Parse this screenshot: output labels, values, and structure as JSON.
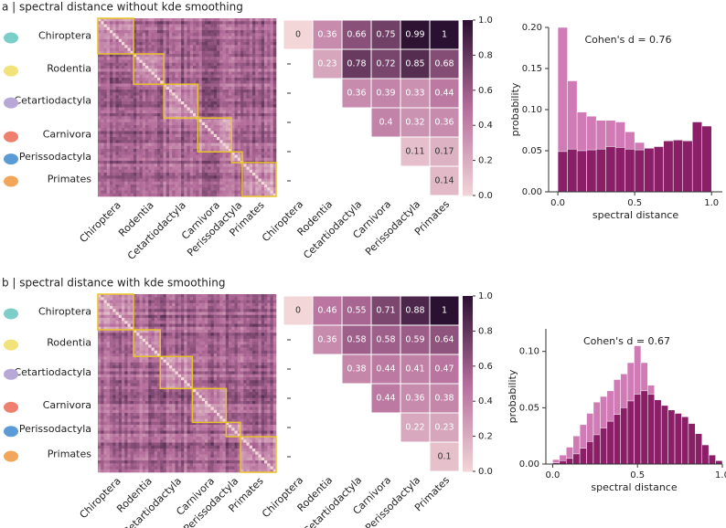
{
  "chart_data": [
    {
      "type": "heatmap",
      "title": "a | spectral distance without kde smoothing",
      "categories": [
        "Chiroptera",
        "Rodentia",
        "Cetartiodactyla",
        "Carnivora",
        "Perissodactyla",
        "Primates"
      ],
      "values": [
        [
          0,
          0.36,
          0.66,
          0.75,
          0.99,
          1
        ],
        [
          null,
          0.23,
          0.78,
          0.72,
          0.85,
          0.68
        ],
        [
          null,
          null,
          0.36,
          0.39,
          0.33,
          0.44
        ],
        [
          null,
          null,
          null,
          0.4,
          0.32,
          0.36
        ],
        [
          null,
          null,
          null,
          null,
          0.11,
          0.17
        ],
        [
          null,
          null,
          null,
          null,
          null,
          0.14
        ]
      ],
      "colors": [
        "#f2d6d8",
        "#b56e9c",
        "#2b1131"
      ],
      "clim": [
        0,
        1
      ],
      "cticks": [
        {
          "value": 0,
          "label": "0.0"
        },
        0.2,
        0.4,
        0.6,
        0.8,
        {
          "value": 1,
          "label": "1.0"
        }
      ]
    },
    {
      "type": "histogram",
      "annotation": "Cohen's d = 0.76",
      "xlabel": "spectral distance",
      "ylabel": "probability",
      "bins": [
        0,
        0.0625,
        0.125,
        0.1875,
        0.25,
        0.3125,
        0.375,
        0.4375,
        0.5,
        0.5625,
        0.625,
        0.6875,
        0.75,
        0.8125,
        0.875,
        0.9375,
        1
      ],
      "series": [
        {
          "color": "#d07bb5",
          "values": [
            0.2,
            0.135,
            0.097,
            0.092,
            0.087,
            0.087,
            0.085,
            0.073,
            0.06,
            0.05,
            0.045,
            0.04,
            0.035,
            0.03,
            0.02,
            0.01
          ]
        },
        {
          "color": "#8a1f68",
          "values": [
            0.049,
            0.052,
            0.05,
            0.051,
            0.052,
            0.055,
            0.054,
            0.052,
            0.051,
            0.053,
            0.055,
            0.062,
            0.063,
            0.062,
            0.085,
            0.08
          ]
        }
      ],
      "xlim": [
        -0.06,
        1.07
      ],
      "ylim": [
        0,
        0.2
      ],
      "xticks": [
        {
          "value": 0,
          "label": "0.0"
        },
        0.5,
        {
          "value": 1,
          "label": "1.0"
        }
      ],
      "yticks": [
        {
          "value": 0,
          "label": "0.00"
        },
        {
          "value": 0.05,
          "label": "0.05"
        },
        {
          "value": 0.1,
          "label": "0.10"
        },
        {
          "value": 0.15,
          "label": "0.15"
        },
        {
          "value": 0.2,
          "label": "0.20"
        }
      ]
    },
    {
      "type": "heatmap",
      "title": "b | spectral distance with kde smoothing",
      "categories": [
        "Chiroptera",
        "Rodentia",
        "Cetartiodactyla",
        "Carnivora",
        "Perissodactyla",
        "Primates"
      ],
      "values": [
        [
          0,
          0.46,
          0.55,
          0.71,
          0.88,
          1
        ],
        [
          null,
          0.36,
          0.58,
          0.58,
          0.59,
          0.64
        ],
        [
          null,
          null,
          0.38,
          0.44,
          0.41,
          0.47
        ],
        [
          null,
          null,
          null,
          0.44,
          0.36,
          0.38
        ],
        [
          null,
          null,
          null,
          null,
          0.22,
          0.23
        ],
        [
          null,
          null,
          null,
          null,
          null,
          0.1
        ]
      ],
      "colors": [
        "#f2d6d8",
        "#b56e9c",
        "#2b1131"
      ],
      "clim": [
        0,
        1
      ],
      "cticks": [
        {
          "value": 0,
          "label": "0.0"
        },
        0.2,
        0.4,
        0.6,
        0.8,
        {
          "value": 1,
          "label": "1.0"
        }
      ]
    },
    {
      "type": "histogram",
      "annotation": "Cohen's d = 0.67",
      "xlabel": "spectral distance",
      "ylabel": "probability",
      "bins": [
        0,
        0.04,
        0.08,
        0.12,
        0.16,
        0.2,
        0.24,
        0.28,
        0.32,
        0.36,
        0.4,
        0.44,
        0.48,
        0.52,
        0.56,
        0.6,
        0.64,
        0.68,
        0.72,
        0.76,
        0.8,
        0.84,
        0.88,
        0.92,
        0.96,
        1
      ],
      "series": [
        {
          "color": "#d07bb5",
          "values": [
            0.004,
            0.008,
            0.015,
            0.025,
            0.035,
            0.045,
            0.055,
            0.06,
            0.065,
            0.075,
            0.08,
            0.09,
            0.105,
            0.09,
            0.07,
            0.05,
            0.03,
            0.017,
            0.008,
            0.004,
            0.002,
            0.001,
            0,
            0,
            0
          ]
        },
        {
          "color": "#8a1f68",
          "values": [
            0.001,
            0.003,
            0.005,
            0.009,
            0.014,
            0.02,
            0.026,
            0.032,
            0.038,
            0.044,
            0.05,
            0.056,
            0.062,
            0.065,
            0.062,
            0.057,
            0.052,
            0.048,
            0.045,
            0.042,
            0.036,
            0.027,
            0.017,
            0.008,
            0.003
          ]
        }
      ],
      "xlim": [
        -0.04,
        1.0
      ],
      "ylim": [
        0,
        0.12
      ],
      "xticks": [
        {
          "value": 0,
          "label": "0.0"
        },
        0.5,
        {
          "value": 1,
          "label": "1.0"
        }
      ],
      "yticks": [
        {
          "value": 0,
          "label": "0.00"
        },
        {
          "value": 0.05,
          "label": "0.05"
        },
        {
          "value": 0.1,
          "label": "0.10"
        }
      ]
    }
  ]
}
